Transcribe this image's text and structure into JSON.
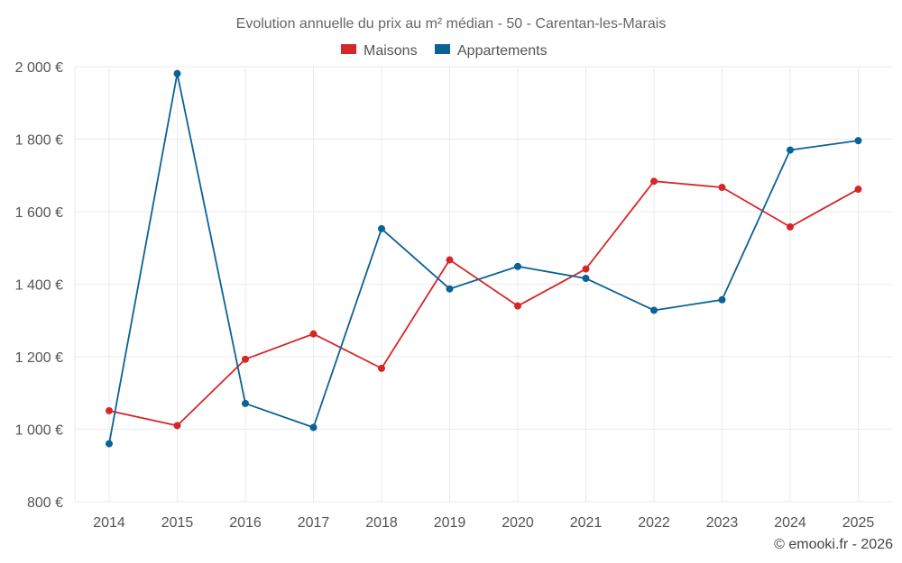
{
  "chart_data": {
    "type": "line",
    "title": "Evolution annuelle du prix au m² médian - 50 - Carentan-les-Marais",
    "x": [
      "2014",
      "2015",
      "2016",
      "2017",
      "2018",
      "2019",
      "2020",
      "2021",
      "2022",
      "2023",
      "2024",
      "2025"
    ],
    "series": [
      {
        "name": "Maisons",
        "color": "#d62728",
        "values": [
          1051,
          1010,
          1193,
          1263,
          1168,
          1467,
          1340,
          1442,
          1684,
          1667,
          1558,
          1662
        ]
      },
      {
        "name": "Appartements",
        "color": "#0b6296",
        "values": [
          960,
          1981,
          1071,
          1005,
          1553,
          1387,
          1449,
          1416,
          1328,
          1357,
          1770,
          1796
        ]
      }
    ],
    "ylim": [
      800,
      2000
    ],
    "yticks": [
      800,
      1000,
      1200,
      1400,
      1600,
      1800,
      2000
    ],
    "ytick_labels": [
      "800 €",
      "1 000 €",
      "1 200 €",
      "1 400 €",
      "1 600 €",
      "1 800 €",
      "2 000 €"
    ],
    "legend_position": "top-center",
    "grid": true
  },
  "credit": "© emooki.fr - 2026"
}
